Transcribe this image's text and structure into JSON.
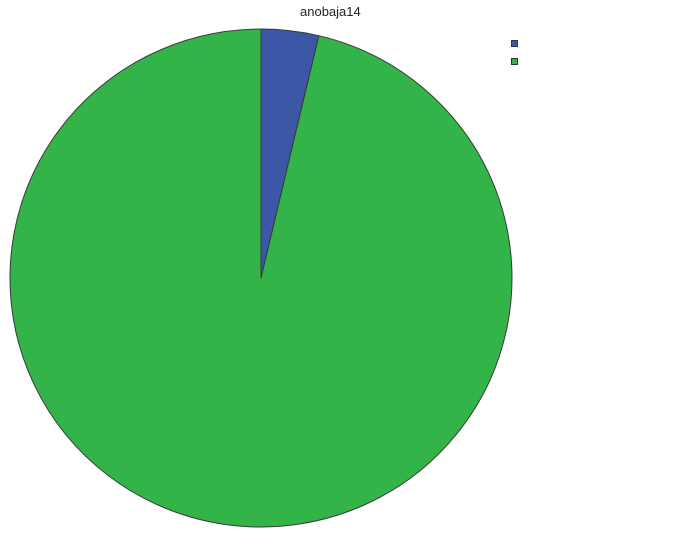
{
  "chart_data": {
    "type": "pie",
    "title": "anobaja14",
    "slices": [
      {
        "label": "",
        "value": 3.7,
        "color": "#3b57a6"
      },
      {
        "label": "",
        "value": 96.3,
        "color": "#33b449"
      }
    ],
    "start_angle_deg": 0,
    "direction": "clockwise",
    "legend_position": "right-top",
    "slice_border_color": "#3a3a3a"
  }
}
